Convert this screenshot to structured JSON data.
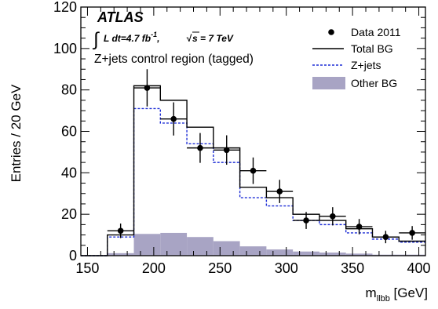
{
  "chart_data": {
    "type": "bar",
    "experiment": "ATLAS",
    "lumi_text": "L dt=4.7 fb",
    "lumi_sup": "-1",
    "energy_text": "s = 7 TeV",
    "region_text": "Z+jets control region (tagged)",
    "xlabel_main": "m",
    "xlabel_sub": "llbb",
    "xlabel_unit": " [GeV]",
    "ylabel": "Entries / 20 GeV",
    "xlim": [
      145,
      405
    ],
    "ylim": [
      0,
      120
    ],
    "x_ticks": [
      150,
      200,
      250,
      300,
      350,
      400
    ],
    "y_ticks": [
      0,
      20,
      40,
      60,
      80,
      100,
      120
    ],
    "bin_edges": [
      145,
      165,
      185,
      205,
      225,
      245,
      265,
      285,
      305,
      325,
      345,
      365,
      385,
      405
    ],
    "series": [
      {
        "name": "Data 2011",
        "kind": "points",
        "x": [
          175,
          195,
          215,
          235,
          255,
          275,
          295,
          315,
          335,
          355,
          375,
          395
        ],
        "y": [
          12,
          81,
          66,
          52,
          51,
          41,
          31,
          17,
          19,
          14,
          9,
          11
        ],
        "err": [
          3.5,
          9,
          8,
          7.2,
          7.1,
          6.4,
          5.6,
          4.1,
          4.4,
          3.7,
          3,
          3.3
        ]
      },
      {
        "name": "Total BG",
        "kind": "step",
        "values": [
          0,
          10,
          82,
          75,
          62,
          52,
          33,
          28,
          20,
          17,
          13,
          9,
          7
        ]
      },
      {
        "name": "Z+jets",
        "kind": "step-dashed",
        "values": [
          0,
          9,
          71,
          64,
          54,
          45,
          28,
          24,
          17,
          15,
          11,
          8,
          6.5
        ]
      },
      {
        "name": "Other BG",
        "kind": "filled",
        "values": [
          0,
          1.2,
          10.5,
          11,
          9,
          7,
          4.5,
          3,
          2,
          1.5,
          1,
          0.5,
          0.5
        ]
      }
    ],
    "legend_position": "top-right",
    "colors": {
      "data": "#000000",
      "total_bg": "#000000",
      "zjets": "#1f2fd6",
      "other_bg": "#a8a4c4"
    }
  }
}
